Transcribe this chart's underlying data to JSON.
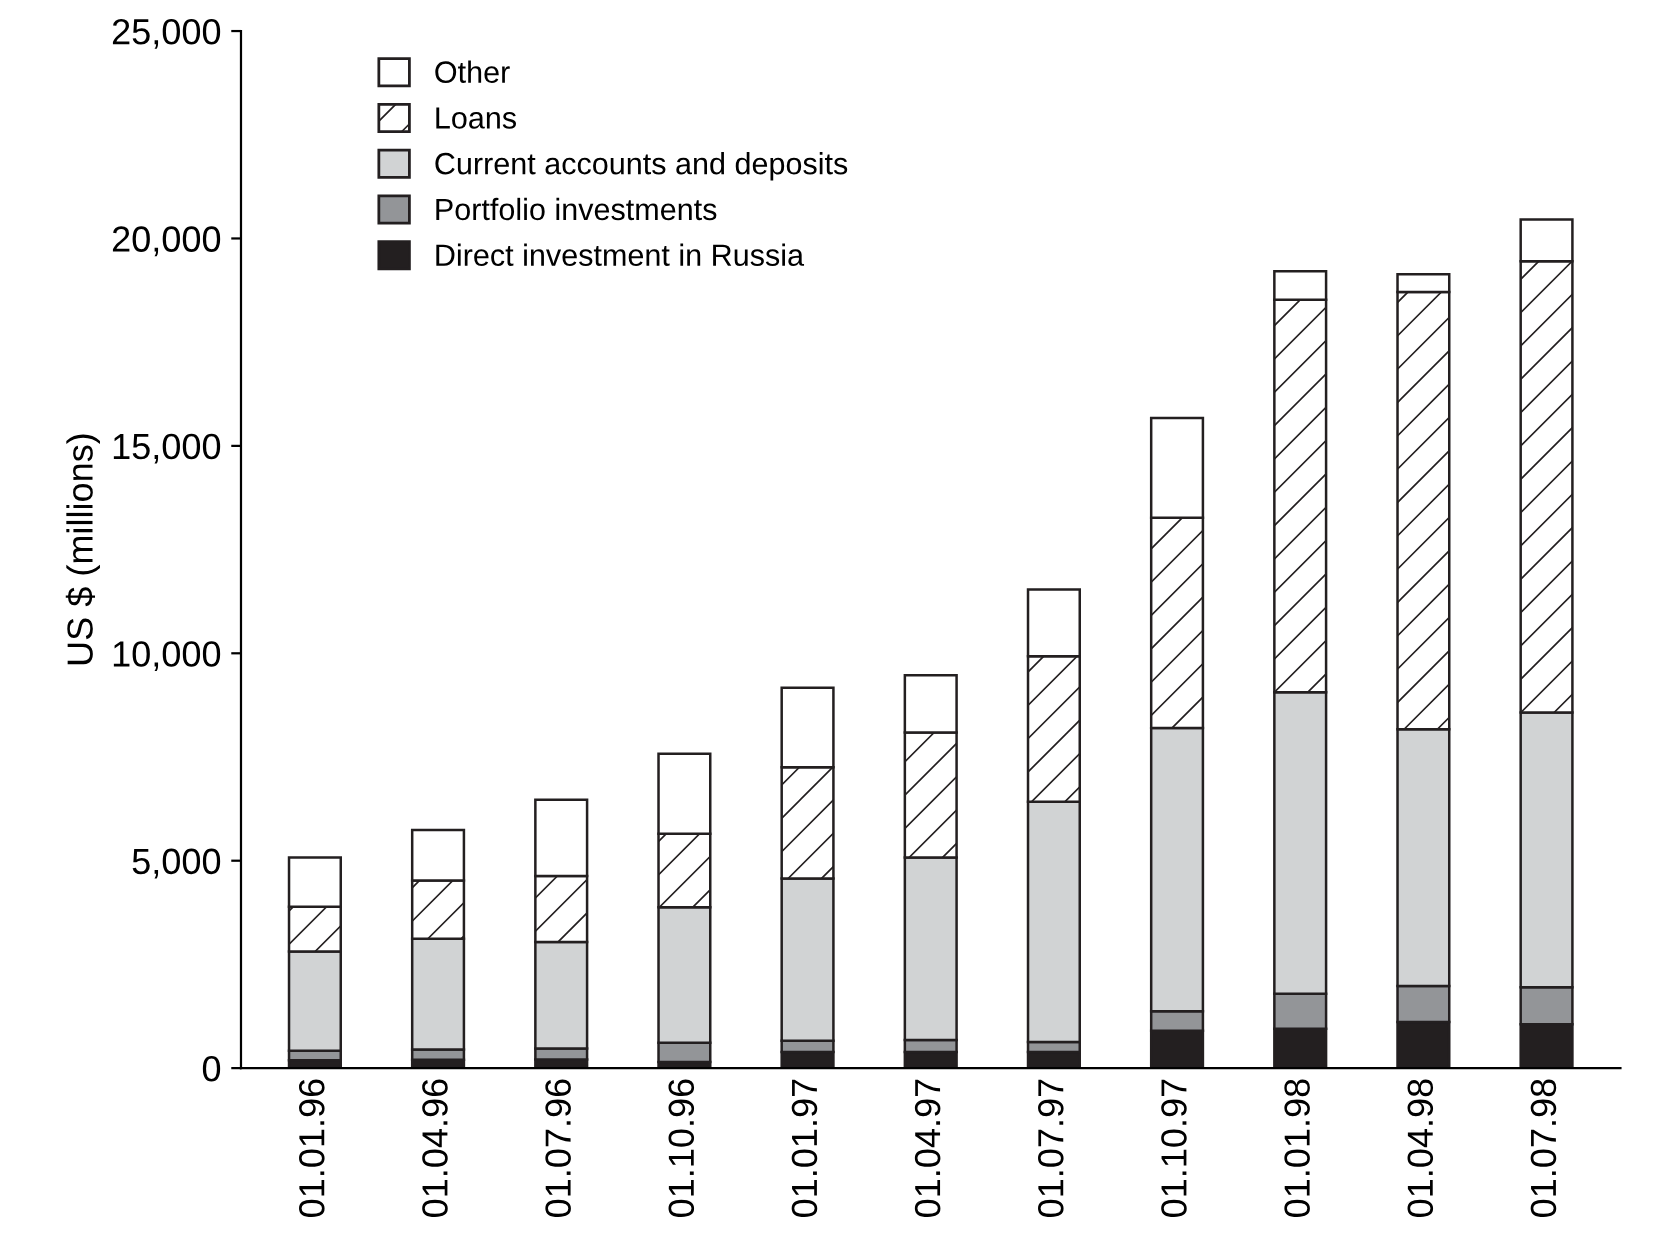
{
  "chart_data": {
    "type": "bar",
    "stacked": true,
    "ylabel": "US $ (millions)",
    "categories": [
      "01.01.96",
      "01.04.96",
      "01.07.96",
      "01.10.96",
      "01.01.97",
      "01.04.97",
      "01.07.97",
      "01.10.97",
      "01.01.98",
      "01.04.98",
      "01.07.98"
    ],
    "series": [
      {
        "name": "Direct investment in Russia",
        "color": "#231f20",
        "values": [
          190,
          200,
          210,
          150,
          390,
          390,
          390,
          900,
          950,
          1110,
          1060
        ]
      },
      {
        "name": "Portfolio investments",
        "color": "#939598",
        "values": [
          230,
          250,
          260,
          460,
          270,
          290,
          240,
          470,
          840,
          870,
          890
        ]
      },
      {
        "name": "Current accounts and deposits",
        "color": "#d1d3d4",
        "values": [
          2390,
          2670,
          2570,
          3270,
          3910,
          4400,
          5790,
          6830,
          7270,
          6190,
          6620
        ]
      },
      {
        "name": "Loans",
        "color": "#ffffff",
        "values": [
          1080,
          1400,
          1590,
          1770,
          2680,
          3010,
          3510,
          5070,
          9460,
          10540,
          10880
        ]
      },
      {
        "name": "Other",
        "color": "#ffffff",
        "values": [
          1190,
          1220,
          1840,
          1930,
          1920,
          1380,
          1610,
          2400,
          690,
          430,
          1010
        ]
      }
    ],
    "ylim": [
      0,
      25000
    ],
    "yticks": [
      {
        "value": 0,
        "label": "0"
      },
      {
        "value": 5000,
        "label": "5,000"
      },
      {
        "value": 10000,
        "label": "10,000"
      },
      {
        "value": 15000,
        "label": "15,000"
      },
      {
        "value": 20000,
        "label": "20,000"
      },
      {
        "value": 25000,
        "label": "25,000"
      }
    ],
    "legend": "top left",
    "grid": false
  }
}
